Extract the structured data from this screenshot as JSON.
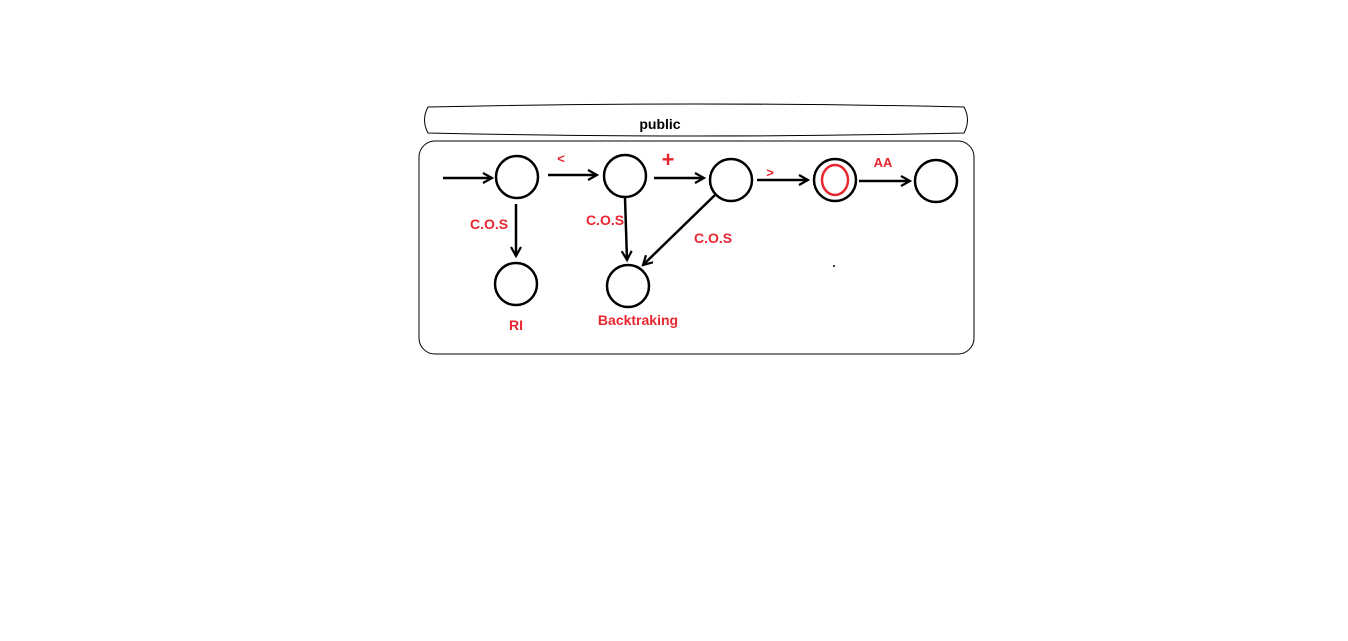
{
  "header": {
    "title": "public"
  },
  "colors": {
    "ink": "#000000",
    "accent": "#e8262f"
  },
  "edges": {
    "less_than": "<",
    "plus": "+",
    "greater_than": ">",
    "aa": "AA",
    "cos_1": "C.O.S",
    "cos_2": "C.O.S",
    "cos_3": "C.O.S"
  },
  "states": {
    "ri": "RI",
    "backtracking": "Backtraking"
  }
}
